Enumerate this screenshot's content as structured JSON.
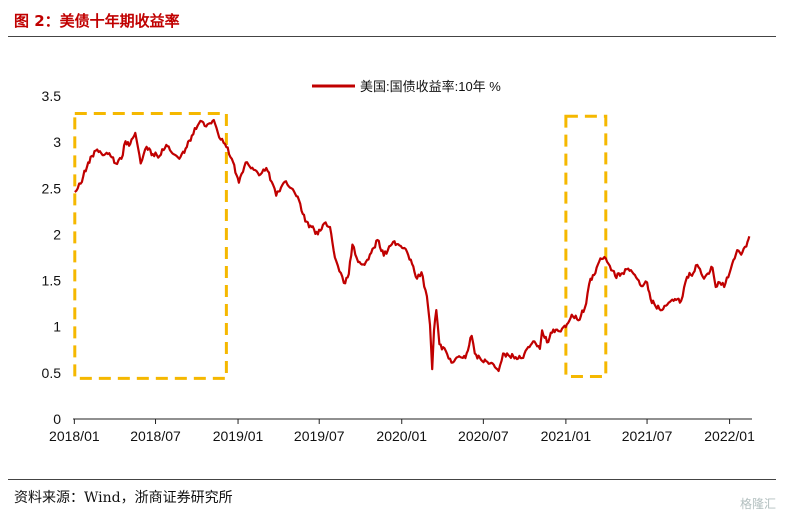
{
  "figure": {
    "title": "图 2：美债十年期收益率",
    "source": "资料来源：Wind，浙商证券研究所",
    "watermark": "格隆汇"
  },
  "colors": {
    "line": "#c00000",
    "highlight": "#f5b800",
    "title": "#c00000"
  },
  "chart_data": {
    "type": "line",
    "title": "",
    "xlabel": "",
    "ylabel": "",
    "ylim": [
      0,
      3.5
    ],
    "yticks": [
      "0",
      "0.5",
      "1",
      "1.5",
      "2",
      "2.5",
      "3",
      "3.5"
    ],
    "xlim": [
      "2017-12-29",
      "2022-02-20"
    ],
    "xticks": [
      "2018/01",
      "2018/07",
      "2019/01",
      "2019/07",
      "2020/01",
      "2020/07",
      "2021/01",
      "2021/07",
      "2022/01"
    ],
    "legend": {
      "position": "top",
      "label": "美国:国债收益率:10年  %"
    },
    "grid": false,
    "series": [
      {
        "name": "美国:国债收益率:10年  %",
        "x": [
          "2018-01-02",
          "2018-01-15",
          "2018-02-01",
          "2018-02-09",
          "2018-02-21",
          "2018-03-05",
          "2018-03-20",
          "2018-04-03",
          "2018-04-16",
          "2018-04-25",
          "2018-05-03",
          "2018-05-17",
          "2018-05-29",
          "2018-06-11",
          "2018-06-25",
          "2018-07-10",
          "2018-07-25",
          "2018-08-10",
          "2018-08-23",
          "2018-09-06",
          "2018-09-20",
          "2018-10-03",
          "2018-10-09",
          "2018-10-22",
          "2018-11-08",
          "2018-11-20",
          "2018-12-03",
          "2018-12-18",
          "2019-01-03",
          "2019-01-18",
          "2019-02-05",
          "2019-02-20",
          "2019-03-05",
          "2019-03-20",
          "2019-03-27",
          "2019-04-15",
          "2019-04-30",
          "2019-05-14",
          "2019-05-31",
          "2019-06-14",
          "2019-06-28",
          "2019-07-12",
          "2019-07-25",
          "2019-08-05",
          "2019-08-15",
          "2019-08-28",
          "2019-09-05",
          "2019-09-13",
          "2019-09-26",
          "2019-10-10",
          "2019-10-25",
          "2019-11-08",
          "2019-11-22",
          "2019-12-13",
          "2019-12-27",
          "2020-01-10",
          "2020-01-24",
          "2020-02-04",
          "2020-02-14",
          "2020-02-26",
          "2020-03-04",
          "2020-03-09",
          "2020-03-13",
          "2020-03-18",
          "2020-03-25",
          "2020-04-08",
          "2020-04-21",
          "2020-05-08",
          "2020-05-22",
          "2020-06-05",
          "2020-06-12",
          "2020-06-26",
          "2020-07-10",
          "2020-07-24",
          "2020-08-04",
          "2020-08-14",
          "2020-08-26",
          "2020-09-11",
          "2020-09-25",
          "2020-10-09",
          "2020-10-23",
          "2020-11-04",
          "2020-11-09",
          "2020-11-20",
          "2020-12-04",
          "2020-12-18",
          "2021-01-06",
          "2021-01-14",
          "2021-01-29",
          "2021-02-12",
          "2021-02-25",
          "2021-03-05",
          "2021-03-19",
          "2021-03-31",
          "2021-04-09",
          "2021-04-21",
          "2021-05-07",
          "2021-05-20",
          "2021-06-04",
          "2021-06-18",
          "2021-07-01",
          "2021-07-09",
          "2021-07-20",
          "2021-08-03",
          "2021-08-18",
          "2021-09-01",
          "2021-09-15",
          "2021-09-28",
          "2021-10-12",
          "2021-10-21",
          "2021-11-05",
          "2021-11-24",
          "2021-12-01",
          "2021-12-10",
          "2021-12-20",
          "2022-01-04",
          "2022-01-18",
          "2022-01-27",
          "2022-02-10",
          "2022-02-14"
        ],
        "values": [
          2.46,
          2.55,
          2.78,
          2.85,
          2.92,
          2.86,
          2.88,
          2.77,
          2.82,
          3.01,
          2.96,
          3.1,
          2.77,
          2.95,
          2.87,
          2.85,
          2.97,
          2.87,
          2.82,
          2.93,
          3.07,
          3.18,
          3.23,
          3.17,
          3.24,
          3.05,
          2.98,
          2.82,
          2.56,
          2.78,
          2.7,
          2.65,
          2.72,
          2.54,
          2.42,
          2.57,
          2.5,
          2.41,
          2.14,
          2.08,
          2.0,
          2.12,
          2.08,
          1.75,
          1.6,
          1.47,
          1.57,
          1.89,
          1.7,
          1.67,
          1.8,
          1.94,
          1.77,
          1.92,
          1.88,
          1.84,
          1.68,
          1.52,
          1.59,
          1.33,
          1.02,
          0.54,
          0.96,
          1.18,
          0.81,
          0.74,
          0.61,
          0.68,
          0.66,
          0.9,
          0.71,
          0.64,
          0.62,
          0.59,
          0.52,
          0.71,
          0.69,
          0.67,
          0.66,
          0.78,
          0.84,
          0.76,
          0.96,
          0.83,
          0.97,
          0.95,
          1.04,
          1.13,
          1.07,
          1.2,
          1.52,
          1.56,
          1.74,
          1.74,
          1.66,
          1.55,
          1.58,
          1.63,
          1.56,
          1.44,
          1.48,
          1.3,
          1.22,
          1.18,
          1.26,
          1.3,
          1.28,
          1.54,
          1.58,
          1.67,
          1.52,
          1.64,
          1.43,
          1.48,
          1.43,
          1.63,
          1.83,
          1.78,
          1.92,
          1.98
        ]
      }
    ],
    "highlights": [
      {
        "x0": "2018-01-02",
        "x1": "2018-12-06",
        "y0": 0.44,
        "y1": 3.31
      },
      {
        "x0": "2021-01-01",
        "x1": "2021-03-31",
        "y0": 0.46,
        "y1": 3.28
      }
    ]
  }
}
